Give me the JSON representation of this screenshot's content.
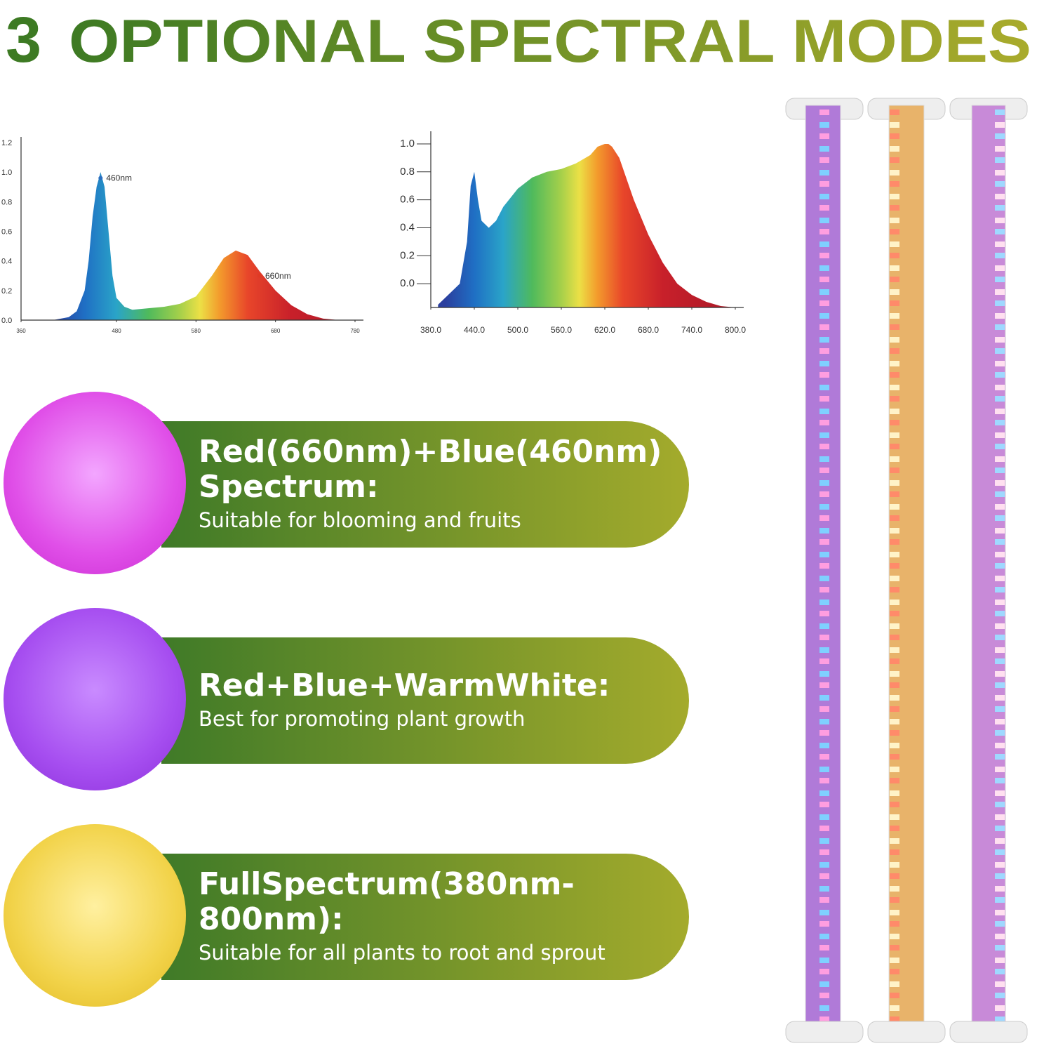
{
  "header": {
    "number": "3",
    "title": "OPTIONAL SPECTRAL MODES"
  },
  "chart_data": [
    {
      "type": "area",
      "x": [
        400,
        420,
        430,
        440,
        445,
        450,
        455,
        460,
        465,
        470,
        475,
        480,
        490,
        500,
        520,
        540,
        560,
        580,
        600,
        615,
        630,
        645,
        660,
        680,
        700,
        720,
        740,
        760
      ],
      "values": [
        0,
        0.02,
        0.06,
        0.2,
        0.4,
        0.7,
        0.9,
        1.0,
        0.9,
        0.6,
        0.3,
        0.15,
        0.09,
        0.07,
        0.08,
        0.09,
        0.11,
        0.16,
        0.3,
        0.42,
        0.47,
        0.44,
        0.33,
        0.2,
        0.1,
        0.04,
        0.01,
        0
      ],
      "xlim": [
        360,
        780
      ],
      "xticks": [
        360,
        480,
        580,
        680,
        780
      ],
      "ylim": [
        0,
        1.2
      ],
      "yticks": [
        {
          "value": 0,
          "label": "0.0"
        },
        {
          "value": 0.2,
          "label": "0.2"
        },
        {
          "value": 0.4,
          "label": "0.4"
        },
        {
          "value": 0.6,
          "label": "0.6"
        },
        {
          "value": 0.8,
          "label": "0.8"
        },
        {
          "value": 1.0,
          "label": "1.0"
        },
        {
          "value": 1.2,
          "label": "1.2"
        }
      ],
      "annotations": [
        {
          "text": "460nm",
          "x": 460,
          "y": 0.96,
          "color": "#2a6fc0"
        },
        {
          "text": "660nm",
          "x": 660,
          "y": 0.3,
          "color": "#e03a24"
        }
      ]
    },
    {
      "type": "area",
      "x": [
        390,
        420,
        430,
        435,
        440,
        445,
        450,
        460,
        470,
        480,
        500,
        520,
        540,
        560,
        580,
        600,
        610,
        620,
        625,
        630,
        640,
        660,
        680,
        700,
        720,
        740,
        760,
        780,
        800
      ],
      "values": [
        -0.15,
        0,
        0.3,
        0.7,
        0.8,
        0.6,
        0.45,
        0.4,
        0.45,
        0.55,
        0.68,
        0.76,
        0.8,
        0.82,
        0.86,
        0.92,
        0.98,
        1.0,
        1.0,
        0.98,
        0.9,
        0.6,
        0.35,
        0.15,
        0,
        -0.08,
        -0.13,
        -0.16,
        -0.17
      ],
      "xlim": [
        380,
        800
      ],
      "xticks": [
        {
          "value": 380,
          "label": "380.0"
        },
        {
          "value": 440,
          "label": "440.0"
        },
        {
          "value": 500,
          "label": "500.0"
        },
        {
          "value": 560,
          "label": "560.0"
        },
        {
          "value": 620,
          "label": "620.0"
        },
        {
          "value": 680,
          "label": "680.0"
        },
        {
          "value": 740,
          "label": "740.0"
        },
        {
          "value": 800,
          "label": "800.0"
        }
      ],
      "ylim": [
        -0.17,
        1.05
      ],
      "yticks": [
        {
          "value": 0,
          "label": "0.0"
        },
        {
          "value": 0.2,
          "label": "0.2"
        },
        {
          "value": 0.4,
          "label": "0.4"
        },
        {
          "value": 0.6,
          "label": "0.6"
        },
        {
          "value": 0.8,
          "label": "0.8"
        },
        {
          "value": 1.0,
          "label": "1.0"
        }
      ],
      "annotations": []
    }
  ],
  "modes": [
    {
      "title": "Red(660nm)+Blue(460nm) Spectrum:",
      "description": "Suitable for blooming and fruits"
    },
    {
      "title": "Red+Blue+WarmWhite:",
      "description": "Best for promoting plant growth"
    },
    {
      "title": "FullSpectrum(380nm-800nm):",
      "description": "Suitable for all plants to root and sprout"
    }
  ]
}
